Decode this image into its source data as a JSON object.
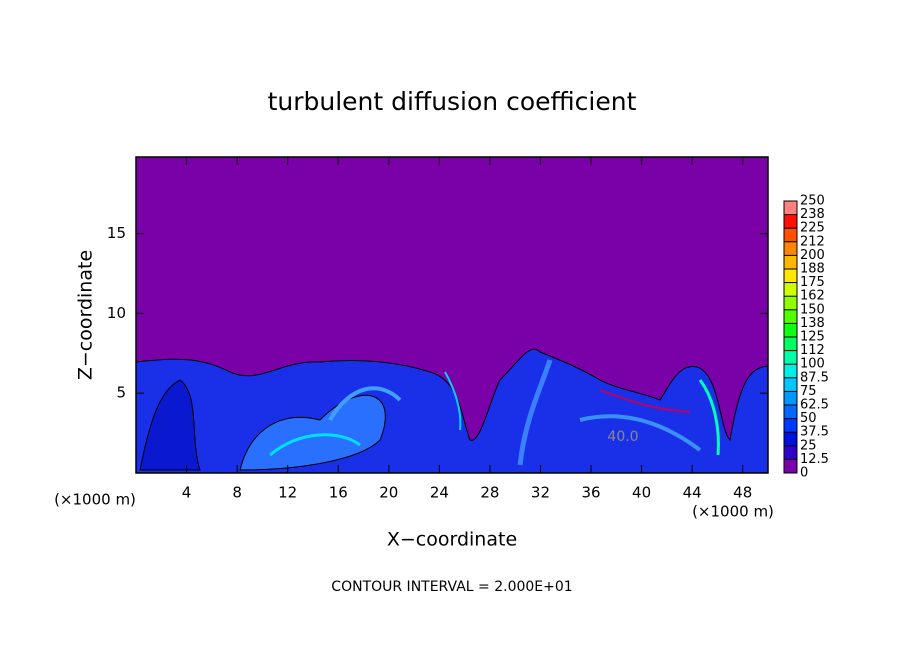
{
  "chart_data": {
    "type": "contour",
    "title": "turbulent diffusion coefficient",
    "x_label": "X−coordinate",
    "y_label": "Z−coordinate",
    "x_unit": "(×1000 m)",
    "y_unit": "(×1000 m)",
    "footnote": "CONTOUR INTERVAL = 2.000E+01",
    "annotation": "40.0",
    "xlim": [
      0,
      50
    ],
    "ylim": [
      0,
      19.8
    ],
    "xticks": [
      4,
      8,
      12,
      16,
      20,
      24,
      28,
      32,
      36,
      40,
      44,
      48
    ],
    "yticks": [
      5,
      10,
      15
    ],
    "colorbar": {
      "levels": [
        0,
        12.5,
        25,
        37.5,
        50,
        62.5,
        75,
        87.5,
        100,
        112,
        125,
        138,
        150,
        162,
        175,
        188,
        200,
        212,
        225,
        238,
        250
      ],
      "colors": [
        "#7a00a8",
        "#3000c8",
        "#0010e0",
        "#0038ff",
        "#0068ff",
        "#0098ff",
        "#00c8ff",
        "#00f0e8",
        "#00ffa8",
        "#00ff60",
        "#10ff10",
        "#50ff00",
        "#90ff00",
        "#d0ff00",
        "#ffe800",
        "#ffb800",
        "#ff8800",
        "#ff5000",
        "#ff1000",
        "#ff8080"
      ]
    }
  }
}
